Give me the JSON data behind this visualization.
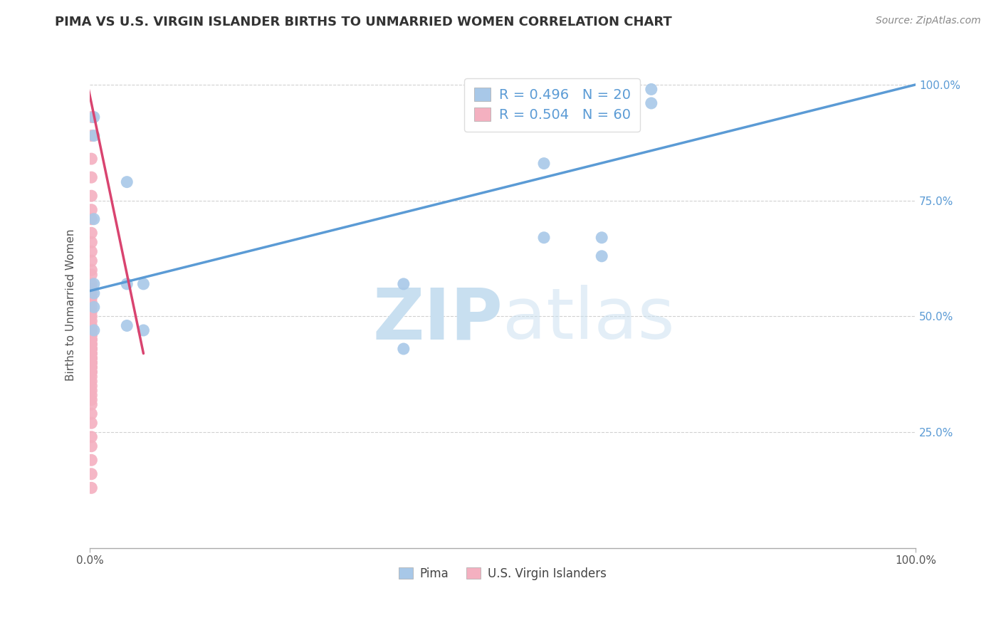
{
  "title": "PIMA VS U.S. VIRGIN ISLANDER BIRTHS TO UNMARRIED WOMEN CORRELATION CHART",
  "source": "Source: ZipAtlas.com",
  "ylabel": "Births to Unmarried Women",
  "legend_label1": "Pima",
  "legend_label2": "U.S. Virgin Islanders",
  "r_blue": "0.496",
  "n_blue": "20",
  "r_pink": "0.504",
  "n_pink": "60",
  "blue_color": "#A8C8E8",
  "pink_color": "#F4B0C0",
  "trend_blue_color": "#5B9BD5",
  "trend_pink_color": "#D94470",
  "pima_x": [
    0.005,
    0.005,
    0.045,
    0.005,
    0.005,
    0.045,
    0.005,
    0.065,
    0.005,
    0.005,
    0.065,
    0.045,
    0.38,
    0.38,
    0.55,
    0.55,
    0.62,
    0.62,
    0.68,
    0.68
  ],
  "pima_y": [
    0.93,
    0.89,
    0.79,
    0.71,
    0.57,
    0.57,
    0.55,
    0.57,
    0.52,
    0.47,
    0.47,
    0.48,
    0.57,
    0.43,
    0.83,
    0.67,
    0.67,
    0.63,
    0.99,
    0.96
  ],
  "vi_x": [
    0.002,
    0.002,
    0.002,
    0.002,
    0.002,
    0.002,
    0.002,
    0.002,
    0.002,
    0.002,
    0.002,
    0.002,
    0.002,
    0.002,
    0.002,
    0.002,
    0.002,
    0.002,
    0.002,
    0.002,
    0.002,
    0.002,
    0.002,
    0.002,
    0.002,
    0.002,
    0.002,
    0.002,
    0.002,
    0.002,
    0.002,
    0.002,
    0.002,
    0.002,
    0.002,
    0.002,
    0.002,
    0.002,
    0.002,
    0.002,
    0.002,
    0.002,
    0.002,
    0.002,
    0.002,
    0.002,
    0.002,
    0.002,
    0.002,
    0.002,
    0.002,
    0.002,
    0.002,
    0.002,
    0.002,
    0.002,
    0.002,
    0.002,
    0.002,
    0.002
  ],
  "vi_y": [
    0.93,
    0.89,
    0.84,
    0.8,
    0.76,
    0.73,
    0.71,
    0.68,
    0.66,
    0.64,
    0.62,
    0.6,
    0.59,
    0.57,
    0.56,
    0.55,
    0.54,
    0.53,
    0.52,
    0.51,
    0.5,
    0.49,
    0.48,
    0.47,
    0.47,
    0.46,
    0.46,
    0.45,
    0.45,
    0.44,
    0.44,
    0.43,
    0.43,
    0.43,
    0.42,
    0.42,
    0.41,
    0.41,
    0.41,
    0.4,
    0.4,
    0.4,
    0.39,
    0.39,
    0.38,
    0.38,
    0.37,
    0.36,
    0.35,
    0.34,
    0.33,
    0.32,
    0.31,
    0.29,
    0.27,
    0.24,
    0.22,
    0.19,
    0.16,
    0.13
  ],
  "blue_trend_x": [
    0.0,
    1.0
  ],
  "blue_trend_y": [
    0.555,
    1.0
  ],
  "pink_trend_x": [
    -0.005,
    0.065
  ],
  "pink_trend_y": [
    1.02,
    0.42
  ],
  "xlim": [
    0.0,
    1.0
  ],
  "ylim": [
    0.0,
    1.05
  ],
  "yticks": [
    0.25,
    0.5,
    0.75,
    1.0
  ],
  "ytick_labels": [
    "25.0%",
    "50.0%",
    "75.0%",
    "100.0%"
  ],
  "xticks": [
    0.0,
    1.0
  ],
  "xtick_labels": [
    "0.0%",
    "100.0%"
  ],
  "grid_color": "#CCCCCC",
  "background_color": "#FFFFFF",
  "title_color": "#333333",
  "source_color": "#888888",
  "tick_color": "#5B9BD5",
  "ylabel_color": "#555555",
  "watermark_color": "#C8DFF0",
  "title_fontsize": 13,
  "source_fontsize": 10,
  "axis_fontsize": 11,
  "tick_fontsize": 11,
  "legend_fontsize": 14
}
